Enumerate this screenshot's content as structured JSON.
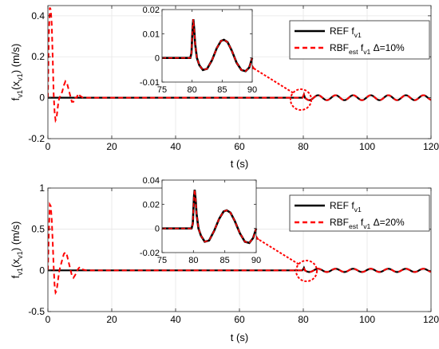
{
  "chart_data": [
    {
      "type": "line",
      "xlabel": "t (s)",
      "ylabel": "f_{v1}(x_{v1}) (m/s)",
      "xlim": [
        0,
        120
      ],
      "ylim": [
        -0.2,
        0.45
      ],
      "xticks": [
        0,
        20,
        40,
        60,
        80,
        100,
        120
      ],
      "yticks": [
        -0.2,
        0,
        0.2,
        0.4
      ],
      "ytick_labels": [
        "-0.2",
        "0",
        "0.2",
        "0.4"
      ],
      "grid": true,
      "legend_position": "top-right",
      "series": [
        {
          "name": "REF f_{v1}",
          "color": "#000000",
          "style": "solid"
        },
        {
          "name": "RBF_{est} f_{v1} Δ=10%",
          "color": "#ff0000",
          "style": "dashed"
        }
      ],
      "transient": {
        "x": [
          0,
          0.3,
          0.6,
          0.9,
          1.2,
          1.5,
          1.8,
          2.1,
          2.4,
          2.7,
          3.0,
          3.3,
          3.6,
          4.0,
          4.5,
          5.0,
          5.5,
          6.0,
          6.5,
          7.0,
          7.5,
          8.0,
          8.5,
          9.0,
          9.5,
          10.0,
          11.0,
          12.0
        ],
        "y": [
          0.0,
          0.3,
          0.44,
          0.43,
          0.36,
          0.2,
          0.02,
          -0.07,
          -0.11,
          -0.1,
          -0.06,
          -0.02,
          0.0,
          0.01,
          0.03,
          0.06,
          0.08,
          0.07,
          0.04,
          0.01,
          -0.02,
          -0.02,
          0.0,
          0.0,
          0.02,
          0.01,
          0.0,
          0.0
        ]
      },
      "oscillation": {
        "start": 80,
        "end": 120,
        "period": 5.5,
        "amplitude": 0.012
      },
      "spike": {
        "t": 80.2,
        "peak": 0.016
      },
      "inset": {
        "xlim": [
          75,
          90
        ],
        "ylim": [
          -0.01,
          0.02
        ],
        "xticks": [
          75,
          80,
          85,
          90
        ],
        "yticks": [
          -0.01,
          0,
          0.01,
          0.02
        ],
        "ytick_labels": [
          "-0.01",
          "0",
          "0.01",
          "0.02"
        ],
        "x": [
          75,
          79.7,
          79.9,
          80.0,
          80.1,
          80.2,
          80.35,
          80.5,
          80.8,
          81.2,
          81.8,
          82.5,
          83.3,
          84.1,
          84.8,
          85.3,
          85.9,
          86.6,
          87.4,
          88.2,
          88.9,
          89.5,
          90
        ],
        "y": [
          0,
          0,
          0.002,
          0.008,
          0.013,
          0.016,
          0.012,
          0.006,
          0.0,
          -0.003,
          -0.005,
          -0.0045,
          -0.001,
          0.004,
          0.007,
          0.0075,
          0.0065,
          0.003,
          -0.002,
          -0.005,
          -0.0055,
          -0.004,
          0.0
        ]
      }
    },
    {
      "type": "line",
      "xlabel": "t (s)",
      "ylabel": "f_{v1}(x_{v1}) (m/s)",
      "xlim": [
        0,
        120
      ],
      "ylim": [
        -0.5,
        1
      ],
      "xticks": [
        0,
        20,
        40,
        60,
        80,
        100,
        120
      ],
      "yticks": [
        -0.5,
        0,
        0.5,
        1
      ],
      "ytick_labels": [
        "-0.5",
        "0",
        "0.5",
        "1"
      ],
      "grid": true,
      "legend_position": "top-right",
      "series": [
        {
          "name": "REF f_{v1}",
          "color": "#000000",
          "style": "solid"
        },
        {
          "name": "RBF_{est} f_{v1} Δ=20%",
          "color": "#ff0000",
          "style": "dashed"
        }
      ],
      "transient": {
        "x": [
          0,
          0.3,
          0.6,
          0.9,
          1.2,
          1.5,
          1.8,
          2.1,
          2.4,
          2.7,
          3.0,
          3.3,
          3.6,
          4.0,
          4.5,
          5.0,
          5.5,
          6.0,
          6.5,
          7.0,
          7.5,
          8.0,
          8.5,
          9.0,
          9.5,
          10.0,
          11.0,
          12.0
        ],
        "y": [
          0.0,
          0.45,
          0.8,
          0.78,
          0.62,
          0.35,
          0.05,
          -0.18,
          -0.27,
          -0.25,
          -0.17,
          -0.08,
          0.0,
          0.06,
          0.13,
          0.2,
          0.22,
          0.18,
          0.1,
          0.02,
          -0.06,
          -0.09,
          -0.06,
          -0.02,
          0.02,
          0.04,
          0.01,
          0.0
        ]
      },
      "oscillation": {
        "start": 80,
        "end": 120,
        "period": 5.5,
        "amplitude": 0.02
      },
      "spike": {
        "t": 80.2,
        "peak": 0.032
      },
      "inset": {
        "xlim": [
          75,
          90
        ],
        "ylim": [
          -0.02,
          0.04
        ],
        "xticks": [
          75,
          80,
          85,
          90
        ],
        "yticks": [
          -0.02,
          0,
          0.02,
          0.04
        ],
        "ytick_labels": [
          "-0.02",
          "0",
          "0.02",
          "0.04"
        ],
        "x": [
          75,
          79.7,
          79.9,
          80.0,
          80.1,
          80.2,
          80.35,
          80.5,
          80.8,
          81.2,
          81.8,
          82.5,
          83.3,
          84.1,
          84.8,
          85.3,
          85.9,
          86.6,
          87.4,
          88.2,
          88.9,
          89.5,
          90
        ],
        "y": [
          0,
          0,
          0.004,
          0.016,
          0.027,
          0.032,
          0.024,
          0.012,
          0.0,
          -0.006,
          -0.011,
          -0.01,
          -0.002,
          0.008,
          0.014,
          0.015,
          0.013,
          0.006,
          -0.004,
          -0.011,
          -0.012,
          -0.008,
          0.0
        ]
      }
    }
  ]
}
